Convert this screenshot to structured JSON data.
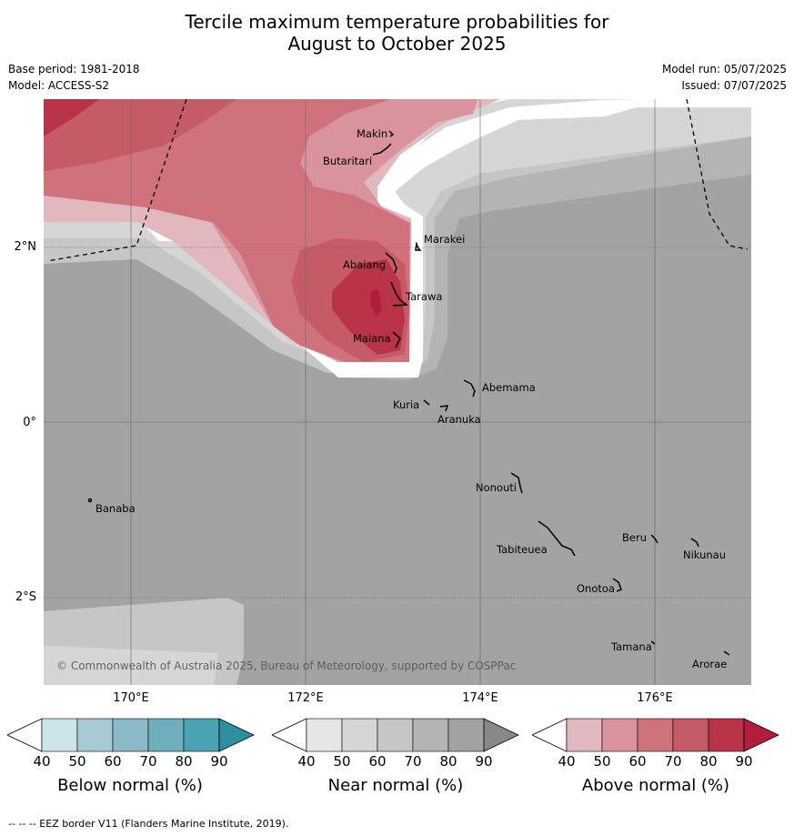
{
  "title_line1": "Tercile maximum temperature probabilities for",
  "title_line2": "August to October 2025",
  "base_period": "Base period: 1981-2018",
  "model": "Model: ACCESS-S2",
  "model_run": "Model run: 05/07/2025",
  "issued": "Issued: 07/07/2025",
  "longitude_labels": [
    "170°E",
    "172°E",
    "174°E",
    "176°E"
  ],
  "latitude_labels": [
    "2°N",
    "0°",
    "2°S"
  ],
  "places": {
    "makin": "Makin",
    "butaritari": "Butaritari",
    "marakei": "Marakei",
    "abaiang": "Abaiang",
    "tarawa": "Tarawa",
    "maiana": "Maiana",
    "abemama": "Abemama",
    "kuria": "Kuria",
    "aranuka": "Aranuka",
    "nonouti": "Nonouti",
    "banaba": "Banaba",
    "beru": "Beru",
    "nikunau": "Nikunau",
    "tabiteuea": "Tabiteuea",
    "onotoa": "Onotoa",
    "tamana": "Tamana",
    "arorae": "Arorae"
  },
  "copyright": "© Commonwealth of Australia 2025, Bureau of Meteorology, supported by COSPPac",
  "colorbars": [
    {
      "label": "Below normal (%)",
      "ticks": [
        "40",
        "50",
        "60",
        "70",
        "80",
        "90"
      ],
      "colors": [
        "#ffffff",
        "#cce3ea",
        "#a8cad2",
        "#8bbac6",
        "#6eaebd",
        "#4aa3b3",
        "#2e8fa3"
      ]
    },
    {
      "label": "Near normal (%)",
      "ticks": [
        "40",
        "50",
        "60",
        "70",
        "80",
        "90"
      ],
      "colors": [
        "#ffffff",
        "#e6e6e6",
        "#d6d6d6",
        "#c6c6c6",
        "#b4b4b4",
        "#a3a3a3",
        "#888888"
      ]
    },
    {
      "label": "Above normal (%)",
      "ticks": [
        "40",
        "50",
        "60",
        "70",
        "80",
        "90"
      ],
      "colors": [
        "#ffffff",
        "#e2b8bf",
        "#d9939c",
        "#cf727c",
        "#c65b68",
        "#b83347",
        "#b01e3c"
      ]
    }
  ],
  "footer": "--  --  -- EEZ border V11 (Flanders Marine Institute, 2019)."
}
